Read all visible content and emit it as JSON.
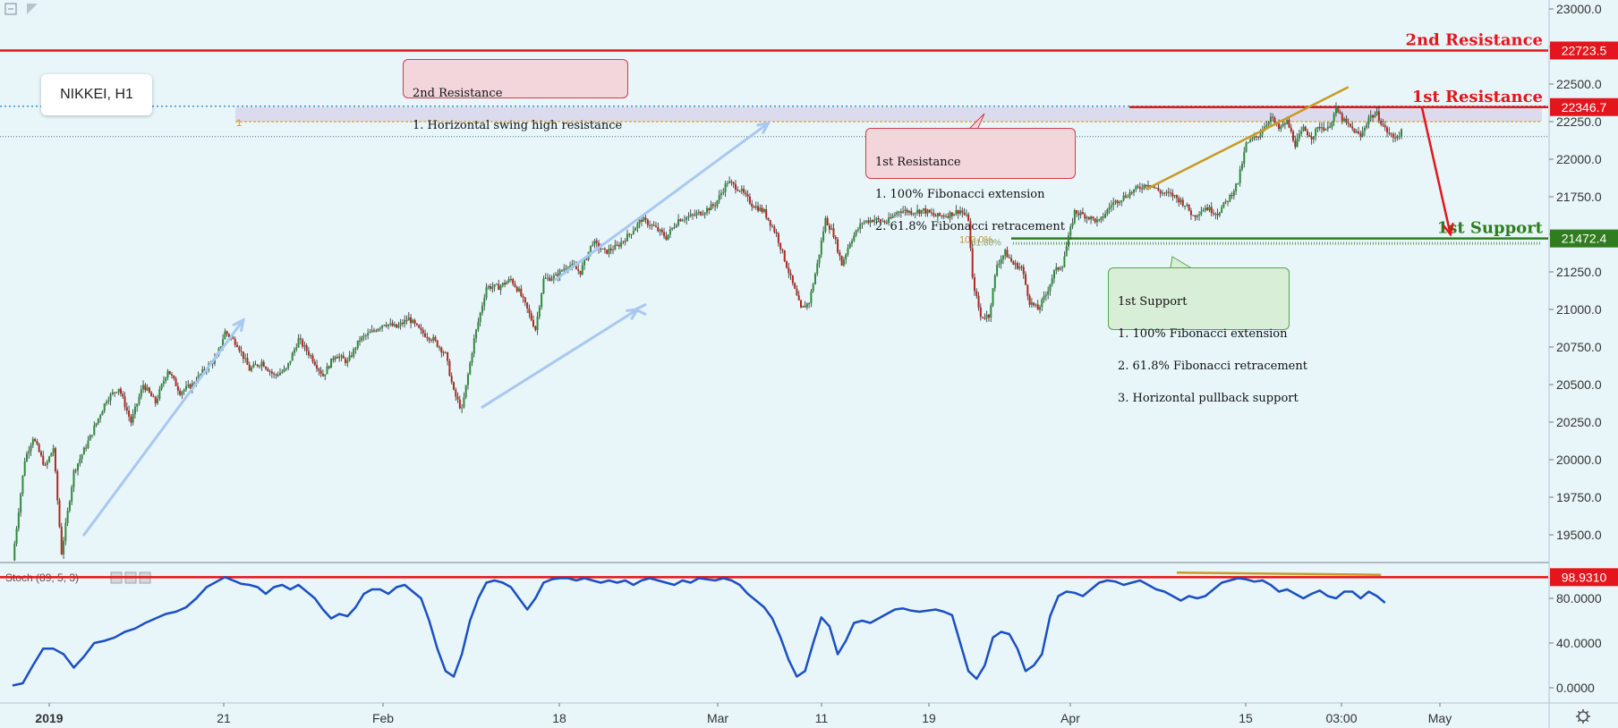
{
  "chart_data": {
    "type": "candlestick",
    "symbol_label": "NIKKEI, H1",
    "price_axis": {
      "ticks": [
        "23000.0",
        "22750.0",
        "22500.0",
        "22250.0",
        "22000.0",
        "21750.0",
        "21500.0",
        "21250.0",
        "21000.0",
        "20750.0",
        "20500.0",
        "20250.0",
        "20000.0",
        "19750.0",
        "19500.0"
      ],
      "ylim": [
        19320,
        23060
      ]
    },
    "date_axis": {
      "labels": [
        "2019",
        "21",
        "Feb",
        "18",
        "Mar",
        "11",
        "19",
        "Apr",
        "15",
        "03:00",
        "May"
      ]
    },
    "levels": [
      {
        "name": "2nd Resistance",
        "value": 22723.5,
        "label": "22723.5",
        "color": "#e4151c"
      },
      {
        "name": "1st Resistance",
        "value": 22346.7,
        "label": "22346.7",
        "color": "#e4151c"
      },
      {
        "name": "1st Support",
        "value": 21472.4,
        "label": "21472.4",
        "color": "#2f7d1e"
      }
    ],
    "annotations": [
      {
        "kind": "resistance",
        "title": "2nd Resistance",
        "lines": [
          "1. Horizontal swing high resistance"
        ]
      },
      {
        "kind": "resistance",
        "title": "1st Resistance",
        "lines": [
          "1. 100% Fibonacci extension",
          "2. 61.8% Fibonacci retracement"
        ]
      },
      {
        "kind": "support",
        "title": "1st Support",
        "lines": [
          "1. 100% Fibonacci extension",
          "2. 61.8% Fibonacci retracement",
          "3. Horizontal pullback support"
        ]
      }
    ],
    "fib_labels": [
      "1",
      "100.0%",
      "61.80%"
    ],
    "price_path": [
      [
        0,
        19330
      ],
      [
        6,
        20000
      ],
      [
        10,
        20150
      ],
      [
        16,
        19950
      ],
      [
        20,
        20080
      ],
      [
        24,
        19380
      ],
      [
        30,
        19920
      ],
      [
        38,
        20150
      ],
      [
        46,
        20400
      ],
      [
        52,
        20480
      ],
      [
        58,
        20250
      ],
      [
        64,
        20500
      ],
      [
        70,
        20380
      ],
      [
        76,
        20600
      ],
      [
        82,
        20450
      ],
      [
        88,
        20500
      ],
      [
        94,
        20600
      ],
      [
        100,
        20680
      ],
      [
        104,
        20850
      ],
      [
        110,
        20770
      ],
      [
        116,
        20600
      ],
      [
        122,
        20650
      ],
      [
        128,
        20560
      ],
      [
        134,
        20600
      ],
      [
        140,
        20800
      ],
      [
        146,
        20690
      ],
      [
        152,
        20560
      ],
      [
        158,
        20700
      ],
      [
        164,
        20650
      ],
      [
        170,
        20800
      ],
      [
        176,
        20850
      ],
      [
        182,
        20910
      ],
      [
        188,
        20880
      ],
      [
        194,
        20940
      ],
      [
        200,
        20850
      ],
      [
        206,
        20800
      ],
      [
        212,
        20700
      ],
      [
        216,
        20450
      ],
      [
        220,
        20330
      ],
      [
        226,
        20800
      ],
      [
        232,
        21150
      ],
      [
        238,
        21150
      ],
      [
        244,
        21200
      ],
      [
        248,
        21120
      ],
      [
        252,
        21000
      ],
      [
        256,
        20870
      ],
      [
        260,
        21200
      ],
      [
        266,
        21220
      ],
      [
        272,
        21300
      ],
      [
        278,
        21250
      ],
      [
        284,
        21450
      ],
      [
        290,
        21380
      ],
      [
        296,
        21420
      ],
      [
        302,
        21500
      ],
      [
        308,
        21600
      ],
      [
        314,
        21550
      ],
      [
        320,
        21480
      ],
      [
        326,
        21600
      ],
      [
        332,
        21620
      ],
      [
        338,
        21650
      ],
      [
        344,
        21700
      ],
      [
        350,
        21850
      ],
      [
        356,
        21800
      ],
      [
        362,
        21700
      ],
      [
        368,
        21650
      ],
      [
        374,
        21500
      ],
      [
        380,
        21250
      ],
      [
        386,
        21000
      ],
      [
        390,
        21050
      ],
      [
        394,
        21300
      ],
      [
        398,
        21600
      ],
      [
        402,
        21500
      ],
      [
        406,
        21300
      ],
      [
        410,
        21450
      ],
      [
        416,
        21580
      ],
      [
        422,
        21600
      ],
      [
        428,
        21580
      ],
      [
        434,
        21660
      ],
      [
        440,
        21650
      ],
      [
        446,
        21660
      ],
      [
        452,
        21620
      ],
      [
        458,
        21630
      ],
      [
        464,
        21660
      ],
      [
        468,
        21600
      ],
      [
        470,
        21200
      ],
      [
        474,
        20950
      ],
      [
        478,
        20960
      ],
      [
        482,
        21300
      ],
      [
        486,
        21380
      ],
      [
        490,
        21300
      ],
      [
        494,
        21280
      ],
      [
        498,
        21050
      ],
      [
        502,
        21000
      ],
      [
        506,
        21100
      ],
      [
        510,
        21250
      ],
      [
        514,
        21300
      ],
      [
        520,
        21650
      ],
      [
        526,
        21620
      ],
      [
        532,
        21580
      ],
      [
        538,
        21700
      ],
      [
        544,
        21750
      ],
      [
        550,
        21800
      ],
      [
        556,
        21840
      ],
      [
        562,
        21780
      ],
      [
        568,
        21760
      ],
      [
        574,
        21700
      ],
      [
        578,
        21620
      ],
      [
        584,
        21680
      ],
      [
        590,
        21640
      ],
      [
        596,
        21750
      ],
      [
        600,
        21850
      ],
      [
        604,
        22100
      ],
      [
        610,
        22160
      ],
      [
        616,
        22280
      ],
      [
        620,
        22200
      ],
      [
        624,
        22250
      ],
      [
        628,
        22100
      ],
      [
        632,
        22200
      ],
      [
        636,
        22150
      ],
      [
        640,
        22220
      ],
      [
        644,
        22200
      ],
      [
        648,
        22330
      ],
      [
        652,
        22250
      ],
      [
        656,
        22200
      ],
      [
        660,
        22150
      ],
      [
        664,
        22280
      ],
      [
        668,
        22300
      ],
      [
        672,
        22200
      ],
      [
        676,
        22140
      ],
      [
        680,
        22180
      ]
    ],
    "stoch": {
      "label": "Stoch (89, 5, 3)",
      "ticks": [
        "80.0000",
        "40.0000",
        "0.0000"
      ],
      "level": 98.931,
      "level_label": "98.9310",
      "ylim": [
        -5,
        102
      ],
      "values": [
        [
          0,
          2
        ],
        [
          5,
          4
        ],
        [
          10,
          20
        ],
        [
          15,
          35
        ],
        [
          20,
          35
        ],
        [
          25,
          30
        ],
        [
          30,
          18
        ],
        [
          35,
          28
        ],
        [
          40,
          40
        ],
        [
          45,
          42
        ],
        [
          50,
          45
        ],
        [
          55,
          50
        ],
        [
          60,
          53
        ],
        [
          65,
          58
        ],
        [
          70,
          62
        ],
        [
          75,
          66
        ],
        [
          80,
          68
        ],
        [
          85,
          72
        ],
        [
          90,
          80
        ],
        [
          95,
          90
        ],
        [
          100,
          95
        ],
        [
          104,
          99
        ],
        [
          108,
          96
        ],
        [
          112,
          93
        ],
        [
          116,
          92
        ],
        [
          120,
          90
        ],
        [
          124,
          84
        ],
        [
          128,
          90
        ],
        [
          132,
          92
        ],
        [
          136,
          88
        ],
        [
          140,
          92
        ],
        [
          144,
          86
        ],
        [
          148,
          80
        ],
        [
          152,
          70
        ],
        [
          156,
          62
        ],
        [
          160,
          66
        ],
        [
          164,
          64
        ],
        [
          168,
          72
        ],
        [
          172,
          84
        ],
        [
          176,
          88
        ],
        [
          180,
          88
        ],
        [
          184,
          84
        ],
        [
          188,
          90
        ],
        [
          192,
          92
        ],
        [
          196,
          86
        ],
        [
          200,
          80
        ],
        [
          204,
          60
        ],
        [
          208,
          35
        ],
        [
          212,
          15
        ],
        [
          216,
          10
        ],
        [
          220,
          30
        ],
        [
          224,
          60
        ],
        [
          228,
          80
        ],
        [
          232,
          94
        ],
        [
          236,
          96
        ],
        [
          240,
          94
        ],
        [
          244,
          90
        ],
        [
          248,
          80
        ],
        [
          252,
          70
        ],
        [
          256,
          80
        ],
        [
          260,
          94
        ],
        [
          264,
          97
        ],
        [
          268,
          98
        ],
        [
          272,
          98
        ],
        [
          276,
          96
        ],
        [
          280,
          98
        ],
        [
          284,
          96
        ],
        [
          288,
          94
        ],
        [
          292,
          96
        ],
        [
          296,
          94
        ],
        [
          300,
          96
        ],
        [
          304,
          92
        ],
        [
          308,
          96
        ],
        [
          312,
          98
        ],
        [
          316,
          96
        ],
        [
          320,
          94
        ],
        [
          324,
          92
        ],
        [
          328,
          96
        ],
        [
          332,
          94
        ],
        [
          336,
          98
        ],
        [
          340,
          97
        ],
        [
          344,
          96
        ],
        [
          348,
          98
        ],
        [
          352,
          96
        ],
        [
          356,
          92
        ],
        [
          360,
          84
        ],
        [
          364,
          78
        ],
        [
          368,
          72
        ],
        [
          372,
          62
        ],
        [
          376,
          45
        ],
        [
          380,
          25
        ],
        [
          384,
          10
        ],
        [
          388,
          15
        ],
        [
          392,
          40
        ],
        [
          396,
          63
        ],
        [
          400,
          55
        ],
        [
          404,
          30
        ],
        [
          408,
          42
        ],
        [
          412,
          58
        ],
        [
          416,
          60
        ],
        [
          420,
          58
        ],
        [
          424,
          62
        ],
        [
          428,
          66
        ],
        [
          432,
          70
        ],
        [
          436,
          71
        ],
        [
          440,
          69
        ],
        [
          444,
          68
        ],
        [
          448,
          69
        ],
        [
          452,
          70
        ],
        [
          456,
          68
        ],
        [
          460,
          65
        ],
        [
          464,
          40
        ],
        [
          468,
          15
        ],
        [
          472,
          8
        ],
        [
          476,
          20
        ],
        [
          480,
          45
        ],
        [
          484,
          50
        ],
        [
          488,
          48
        ],
        [
          492,
          35
        ],
        [
          496,
          15
        ],
        [
          500,
          20
        ],
        [
          504,
          30
        ],
        [
          508,
          64
        ],
        [
          512,
          82
        ],
        [
          516,
          86
        ],
        [
          520,
          85
        ],
        [
          524,
          82
        ],
        [
          528,
          88
        ],
        [
          532,
          94
        ],
        [
          536,
          96
        ],
        [
          540,
          95
        ],
        [
          544,
          92
        ],
        [
          548,
          94
        ],
        [
          552,
          96
        ],
        [
          556,
          92
        ],
        [
          560,
          88
        ],
        [
          564,
          86
        ],
        [
          568,
          82
        ],
        [
          572,
          78
        ],
        [
          576,
          82
        ],
        [
          580,
          80
        ],
        [
          584,
          82
        ],
        [
          588,
          88
        ],
        [
          592,
          94
        ],
        [
          596,
          96
        ],
        [
          600,
          98
        ],
        [
          604,
          97
        ],
        [
          608,
          95
        ],
        [
          612,
          96
        ],
        [
          616,
          92
        ],
        [
          620,
          86
        ],
        [
          624,
          88
        ],
        [
          628,
          84
        ],
        [
          632,
          80
        ],
        [
          636,
          84
        ],
        [
          640,
          87
        ],
        [
          644,
          82
        ],
        [
          648,
          80
        ],
        [
          652,
          86
        ],
        [
          656,
          86
        ],
        [
          660,
          80
        ],
        [
          664,
          86
        ],
        [
          668,
          82
        ],
        [
          672,
          76
        ]
      ]
    }
  }
}
